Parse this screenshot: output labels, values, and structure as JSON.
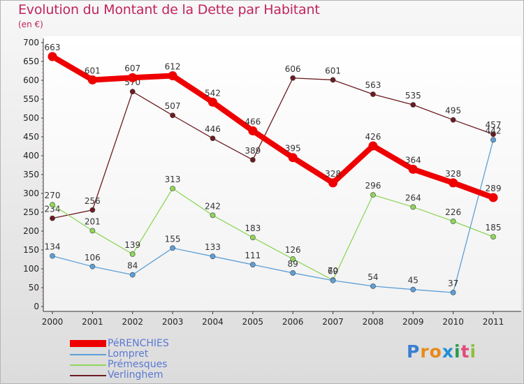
{
  "header": {
    "title": "Evolution du Montant de la Dette par Habitant",
    "subtitle": "(en €)"
  },
  "logo": {
    "text": "Proxiti",
    "letter_colors": [
      "#3a7fd0",
      "#e88a1a",
      "#e88a1a",
      "#1f8fd6",
      "#2a9a4a",
      "#e14b7b",
      "#8dc03f"
    ]
  },
  "chart_data": {
    "type": "line",
    "x": [
      "2000",
      "2001",
      "2002",
      "2003",
      "2004",
      "2005",
      "2006",
      "2007",
      "2008",
      "2009",
      "2010",
      "2011"
    ],
    "ylim": [
      0,
      700
    ],
    "yticks": [
      0,
      50,
      100,
      150,
      200,
      250,
      300,
      350,
      400,
      450,
      500,
      550,
      600,
      650,
      700
    ],
    "grid": false,
    "legend_position": "bottom-left",
    "series": [
      {
        "name": "Verlinghem",
        "color": "#6b1b21",
        "values": [
          234,
          256,
          570,
          507,
          446,
          389,
          606,
          601,
          563,
          535,
          495,
          457
        ]
      },
      {
        "name": "Prémesques",
        "color": "#8ed65a",
        "values": [
          270,
          201,
          139,
          313,
          242,
          183,
          126,
          70,
          296,
          264,
          226,
          185
        ]
      },
      {
        "name": "Lompret",
        "color": "#5d9fd8",
        "values": [
          134,
          106,
          84,
          155,
          133,
          111,
          89,
          69,
          54,
          45,
          37,
          442
        ]
      },
      {
        "name": "PéRENCHIES",
        "color": "#ee0000",
        "values": [
          663,
          601,
          607,
          612,
          542,
          466,
          395,
          328,
          426,
          364,
          328,
          289
        ]
      }
    ]
  },
  "legend": [
    {
      "label": "PéRENCHIES",
      "color": "#ee0000",
      "thick": true
    },
    {
      "label": "Lompret",
      "color": "#5d9fd8",
      "thick": false
    },
    {
      "label": "Prémesques",
      "color": "#8ed65a",
      "thick": false
    },
    {
      "label": "Verlinghem",
      "color": "#6b1b21",
      "thick": false
    }
  ]
}
